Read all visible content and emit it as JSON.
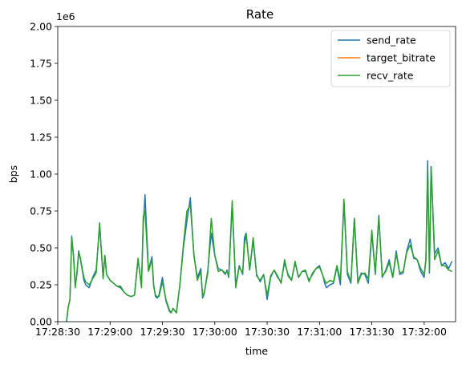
{
  "chart_data": {
    "type": "line",
    "title": "Rate",
    "xlabel": "time",
    "ylabel": "bps",
    "y_offset_label": "1e6",
    "xlim": [
      "17:28:30",
      "17:32:18"
    ],
    "ylim": [
      0,
      2000000
    ],
    "x_ticks": [
      "17:28:30",
      "17:29:00",
      "17:29:30",
      "17:30:00",
      "17:30:30",
      "17:31:00",
      "17:31:30",
      "17:32:00"
    ],
    "y_ticks": [
      "0.00",
      "0.25",
      "0.50",
      "0.75",
      "1.00",
      "1.25",
      "1.50",
      "1.75",
      "2.00"
    ],
    "legend_position": "top-right",
    "grid": false,
    "series": [
      {
        "name": "send_rate",
        "color": "#1f77b4",
        "x": [
          "17:28:35",
          "17:28:36",
          "17:28:37",
          "17:28:38",
          "17:28:39",
          "17:28:40",
          "17:28:41",
          "17:28:42",
          "17:28:43",
          "17:28:44",
          "17:28:45",
          "17:28:46",
          "17:28:48",
          "17:28:50",
          "17:28:52",
          "17:28:54",
          "17:28:56",
          "17:28:57",
          "17:28:58",
          "17:29:00",
          "17:29:02",
          "17:29:04",
          "17:29:06",
          "17:29:08",
          "17:29:10",
          "17:29:12",
          "17:29:14",
          "17:29:16",
          "17:29:18",
          "17:29:19",
          "17:29:20",
          "17:29:22",
          "17:29:24",
          "17:29:25",
          "17:29:26",
          "17:29:27",
          "17:29:28",
          "17:29:30",
          "17:29:32",
          "17:29:34",
          "17:29:35",
          "17:29:36",
          "17:29:38",
          "17:29:40",
          "17:29:42",
          "17:29:44",
          "17:29:46",
          "17:29:48",
          "17:29:50",
          "17:29:52",
          "17:29:53",
          "17:29:54",
          "17:29:56",
          "17:29:58",
          "17:30:00",
          "17:30:02",
          "17:30:04",
          "17:30:06",
          "17:30:07",
          "17:30:08",
          "17:30:10",
          "17:30:12",
          "17:30:14",
          "17:30:16",
          "17:30:17",
          "17:30:18",
          "17:30:20",
          "17:30:22",
          "17:30:24",
          "17:30:26",
          "17:30:28",
          "17:30:30",
          "17:30:32",
          "17:30:34",
          "17:30:36",
          "17:30:38",
          "17:30:40",
          "17:30:42",
          "17:30:44",
          "17:30:46",
          "17:30:48",
          "17:30:50",
          "17:30:52",
          "17:30:54",
          "17:30:56",
          "17:30:58",
          "17:31:00",
          "17:31:02",
          "17:31:03",
          "17:31:04",
          "17:31:06",
          "17:31:08",
          "17:31:10",
          "17:31:12",
          "17:31:14",
          "17:31:16",
          "17:31:18",
          "17:31:20",
          "17:31:22",
          "17:31:24",
          "17:31:26",
          "17:31:28",
          "17:31:30",
          "17:31:32",
          "17:31:34",
          "17:31:36",
          "17:31:38",
          "17:31:40",
          "17:31:42",
          "17:31:44",
          "17:31:46",
          "17:31:48",
          "17:31:50",
          "17:31:52",
          "17:31:54",
          "17:31:56",
          "17:31:58",
          "17:32:00",
          "17:32:01",
          "17:32:02",
          "17:32:03",
          "17:32:04",
          "17:32:06",
          "17:32:08",
          "17:32:10",
          "17:32:12",
          "17:32:14",
          "17:32:16"
        ],
        "values": [
          0,
          100000,
          150000,
          580000,
          450000,
          250000,
          320000,
          480000,
          420000,
          350000,
          280000,
          250000,
          230000,
          300000,
          350000,
          650000,
          300000,
          450000,
          320000,
          280000,
          260000,
          240000,
          230000,
          200000,
          180000,
          170000,
          180000,
          420000,
          250000,
          650000,
          860000,
          350000,
          440000,
          250000,
          170000,
          160000,
          180000,
          300000,
          140000,
          70000,
          60000,
          90000,
          60000,
          250000,
          500000,
          680000,
          840000,
          450000,
          300000,
          360000,
          160000,
          190000,
          350000,
          600000,
          450000,
          360000,
          350000,
          320000,
          350000,
          300000,
          800000,
          240000,
          380000,
          320000,
          570000,
          600000,
          350000,
          550000,
          320000,
          270000,
          320000,
          150000,
          300000,
          350000,
          300000,
          270000,
          400000,
          320000,
          280000,
          400000,
          300000,
          340000,
          340000,
          280000,
          320000,
          360000,
          380000,
          310000,
          260000,
          230000,
          250000,
          260000,
          370000,
          250000,
          810000,
          320000,
          260000,
          700000,
          270000,
          330000,
          320000,
          260000,
          600000,
          320000,
          720000,
          300000,
          350000,
          420000,
          300000,
          480000,
          320000,
          330000,
          480000,
          560000,
          430000,
          420000,
          340000,
          300000,
          420000,
          1090000,
          330000,
          1050000,
          460000,
          500000,
          380000,
          400000,
          360000,
          410000
        ]
      },
      {
        "name": "target_bitrate",
        "color": "#ff7f0e",
        "x": [],
        "values": []
      },
      {
        "name": "recv_rate",
        "color": "#2ca02c",
        "x": [
          "17:28:35",
          "17:28:36",
          "17:28:37",
          "17:28:38",
          "17:28:39",
          "17:28:40",
          "17:28:41",
          "17:28:42",
          "17:28:43",
          "17:28:44",
          "17:28:45",
          "17:28:46",
          "17:28:48",
          "17:28:50",
          "17:28:52",
          "17:28:54",
          "17:28:56",
          "17:28:57",
          "17:28:58",
          "17:29:00",
          "17:29:02",
          "17:29:04",
          "17:29:06",
          "17:29:08",
          "17:29:10",
          "17:29:12",
          "17:29:14",
          "17:29:16",
          "17:29:18",
          "17:29:19",
          "17:29:20",
          "17:29:22",
          "17:29:24",
          "17:29:25",
          "17:29:26",
          "17:29:27",
          "17:29:28",
          "17:29:30",
          "17:29:32",
          "17:29:34",
          "17:29:35",
          "17:29:36",
          "17:29:38",
          "17:29:40",
          "17:29:42",
          "17:29:44",
          "17:29:46",
          "17:29:48",
          "17:29:50",
          "17:29:52",
          "17:29:53",
          "17:29:54",
          "17:29:56",
          "17:29:58",
          "17:30:00",
          "17:30:02",
          "17:30:04",
          "17:30:06",
          "17:30:07",
          "17:30:08",
          "17:30:10",
          "17:30:12",
          "17:30:14",
          "17:30:16",
          "17:30:17",
          "17:30:18",
          "17:30:20",
          "17:30:22",
          "17:30:24",
          "17:30:26",
          "17:30:28",
          "17:30:30",
          "17:30:32",
          "17:30:34",
          "17:30:36",
          "17:30:38",
          "17:30:40",
          "17:30:42",
          "17:30:44",
          "17:30:46",
          "17:30:48",
          "17:30:50",
          "17:30:52",
          "17:30:54",
          "17:30:56",
          "17:30:58",
          "17:31:00",
          "17:31:02",
          "17:31:03",
          "17:31:04",
          "17:31:06",
          "17:31:08",
          "17:31:10",
          "17:31:12",
          "17:31:14",
          "17:31:16",
          "17:31:18",
          "17:31:20",
          "17:31:22",
          "17:31:24",
          "17:31:26",
          "17:31:28",
          "17:31:30",
          "17:31:32",
          "17:31:34",
          "17:31:36",
          "17:31:38",
          "17:31:40",
          "17:31:42",
          "17:31:44",
          "17:31:46",
          "17:31:48",
          "17:31:50",
          "17:31:52",
          "17:31:54",
          "17:31:56",
          "17:31:58",
          "17:32:00",
          "17:32:01",
          "17:32:02",
          "17:32:03",
          "17:32:04",
          "17:32:06",
          "17:32:08",
          "17:32:10",
          "17:32:12",
          "17:32:14",
          "17:32:16"
        ],
        "values": [
          0,
          100000,
          150000,
          570000,
          450000,
          230000,
          330000,
          470000,
          430000,
          360000,
          300000,
          270000,
          250000,
          290000,
          330000,
          670000,
          290000,
          450000,
          320000,
          280000,
          260000,
          240000,
          240000,
          200000,
          180000,
          170000,
          180000,
          430000,
          230000,
          710000,
          750000,
          340000,
          420000,
          240000,
          180000,
          170000,
          170000,
          270000,
          150000,
          80000,
          60000,
          90000,
          60000,
          250000,
          520000,
          750000,
          790000,
          460000,
          280000,
          340000,
          170000,
          200000,
          330000,
          700000,
          450000,
          340000,
          350000,
          330000,
          340000,
          310000,
          820000,
          230000,
          370000,
          330000,
          520000,
          590000,
          350000,
          570000,
          310000,
          280000,
          320000,
          180000,
          310000,
          350000,
          310000,
          260000,
          420000,
          310000,
          280000,
          410000,
          300000,
          340000,
          350000,
          270000,
          330000,
          360000,
          370000,
          310000,
          280000,
          260000,
          280000,
          270000,
          380000,
          280000,
          830000,
          340000,
          270000,
          700000,
          260000,
          320000,
          330000,
          290000,
          620000,
          330000,
          700000,
          310000,
          340000,
          400000,
          300000,
          460000,
          330000,
          340000,
          470000,
          520000,
          440000,
          420000,
          360000,
          320000,
          420000,
          1020000,
          340000,
          1050000,
          420000,
          480000,
          380000,
          380000,
          350000,
          340000
        ]
      }
    ]
  }
}
